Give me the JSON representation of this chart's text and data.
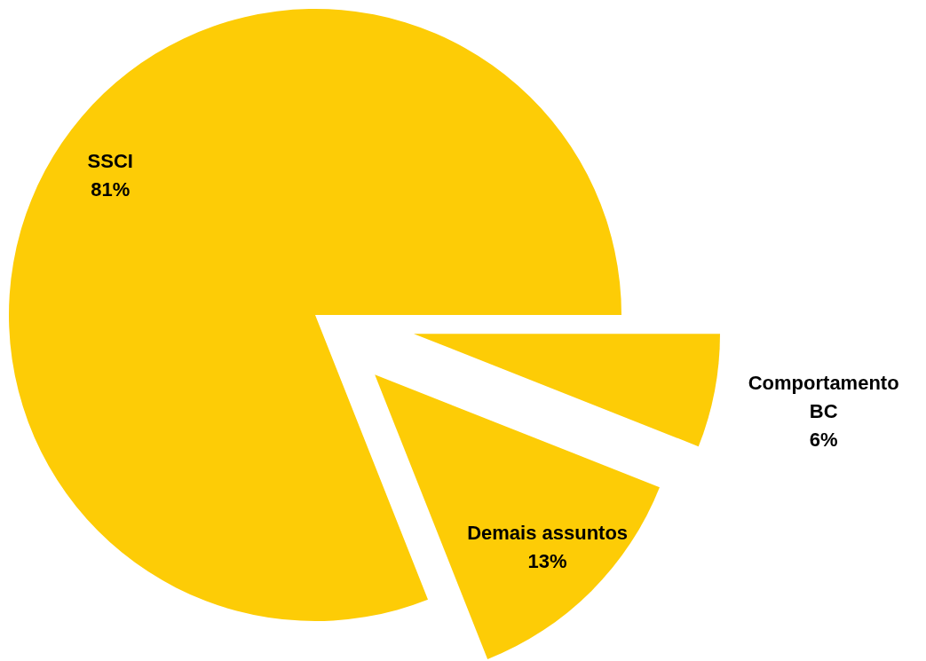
{
  "chart_data": {
    "type": "pie",
    "categories": [
      "Comportamento BC",
      "Demais assuntos",
      "SSCI"
    ],
    "values": [
      6,
      13,
      81
    ],
    "value_labels": [
      "6%",
      "13%",
      "81%"
    ],
    "colors": [
      "#fdcc06",
      "#fdcc06",
      "#fdcc06"
    ]
  }
}
